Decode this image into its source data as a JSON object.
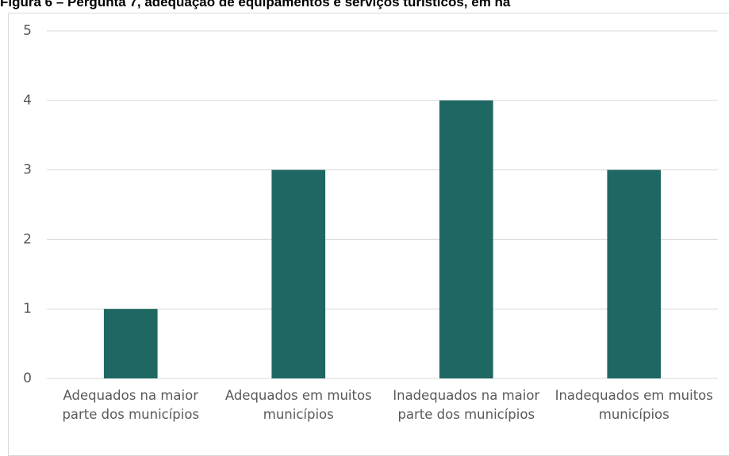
{
  "chart_data": {
    "type": "bar",
    "title": "Figura 6 – Pergunta 7, adequação de equipamentos e serviços turísticos, em na",
    "categories": [
      "Adequados na maior parte dos municípios",
      "Adequados em muitos municípios",
      "Inadequados na maior parte dos municípios",
      "Inadequados em muitos municípios"
    ],
    "values": [
      1,
      3,
      4,
      3
    ],
    "color": "#1f6763",
    "ylim": [
      0,
      5
    ],
    "yticks": [
      0,
      1,
      2,
      3,
      4,
      5
    ],
    "grid": true
  }
}
